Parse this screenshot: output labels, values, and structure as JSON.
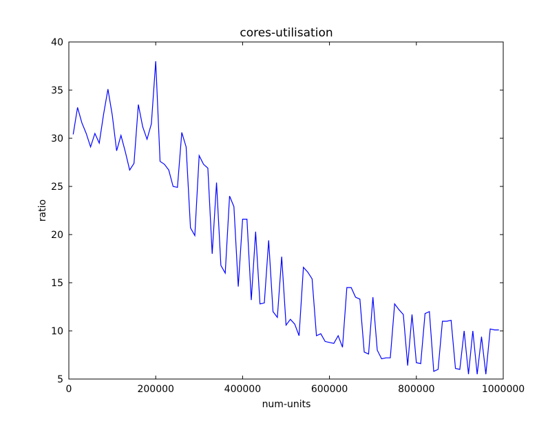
{
  "chart_data": {
    "type": "line",
    "title": "cores-utilisation",
    "xlabel": "num-units",
    "ylabel": "ratio",
    "xlim": [
      0,
      1000000
    ],
    "ylim": [
      5,
      40
    ],
    "xticks": [
      0,
      200000,
      400000,
      600000,
      800000,
      1000000
    ],
    "xtick_labels": [
      "0",
      "200000",
      "400000",
      "600000",
      "800000",
      "1000000"
    ],
    "yticks": [
      5,
      10,
      15,
      20,
      25,
      30,
      35,
      40
    ],
    "ytick_labels": [
      "5",
      "10",
      "15",
      "20",
      "25",
      "30",
      "35",
      "40"
    ],
    "grid": false,
    "legend": "none",
    "series": [
      {
        "color": "#0000ff",
        "x": [
          10000,
          20000,
          30000,
          40000,
          50000,
          60000,
          70000,
          80000,
          90000,
          100000,
          110000,
          120000,
          130000,
          140000,
          150000,
          160000,
          170000,
          180000,
          190000,
          200000,
          210000,
          220000,
          230000,
          240000,
          250000,
          260000,
          270000,
          280000,
          290000,
          300000,
          310000,
          320000,
          330000,
          340000,
          350000,
          360000,
          370000,
          380000,
          390000,
          400000,
          410000,
          420000,
          430000,
          440000,
          450000,
          460000,
          470000,
          480000,
          490000,
          500000,
          510000,
          520000,
          530000,
          540000,
          550000,
          560000,
          570000,
          580000,
          590000,
          600000,
          610000,
          620000,
          630000,
          640000,
          650000,
          660000,
          670000,
          680000,
          690000,
          700000,
          710000,
          720000,
          730000,
          740000,
          750000,
          760000,
          770000,
          780000,
          790000,
          800000,
          810000,
          820000,
          830000,
          840000,
          850000,
          860000,
          870000,
          880000,
          890000,
          900000,
          910000,
          920000,
          930000,
          940000,
          950000,
          960000,
          970000,
          980000,
          990000
        ],
        "y": [
          30.4,
          33.2,
          31.6,
          30.5,
          29.1,
          30.5,
          29.5,
          32.5,
          35.1,
          32.4,
          28.7,
          30.3,
          28.6,
          26.7,
          27.4,
          33.5,
          31.2,
          29.9,
          31.5,
          38.0,
          27.6,
          27.3,
          26.7,
          25.0,
          24.9,
          30.6,
          29.1,
          20.7,
          19.9,
          28.2,
          27.3,
          26.9,
          18.0,
          25.4,
          16.8,
          16.0,
          24.0,
          22.9,
          14.6,
          21.6,
          21.6,
          13.2,
          20.3,
          12.8,
          12.9,
          19.4,
          12.0,
          11.4,
          17.7,
          10.6,
          11.2,
          10.7,
          9.5,
          16.6,
          16.1,
          15.4,
          9.5,
          9.7,
          8.9,
          8.8,
          8.7,
          9.5,
          8.3,
          14.5,
          14.5,
          13.5,
          13.3,
          7.8,
          7.6,
          13.5,
          8.0,
          7.1,
          7.2,
          7.2,
          12.8,
          12.2,
          11.7,
          6.4,
          11.7,
          6.7,
          6.6,
          11.8,
          12.0,
          5.8,
          6.0,
          11.0,
          11.0,
          11.1,
          6.1,
          6.0,
          10.0,
          5.5,
          10.0,
          5.5,
          9.4,
          5.5,
          10.2,
          10.1,
          10.1
        ]
      }
    ]
  }
}
